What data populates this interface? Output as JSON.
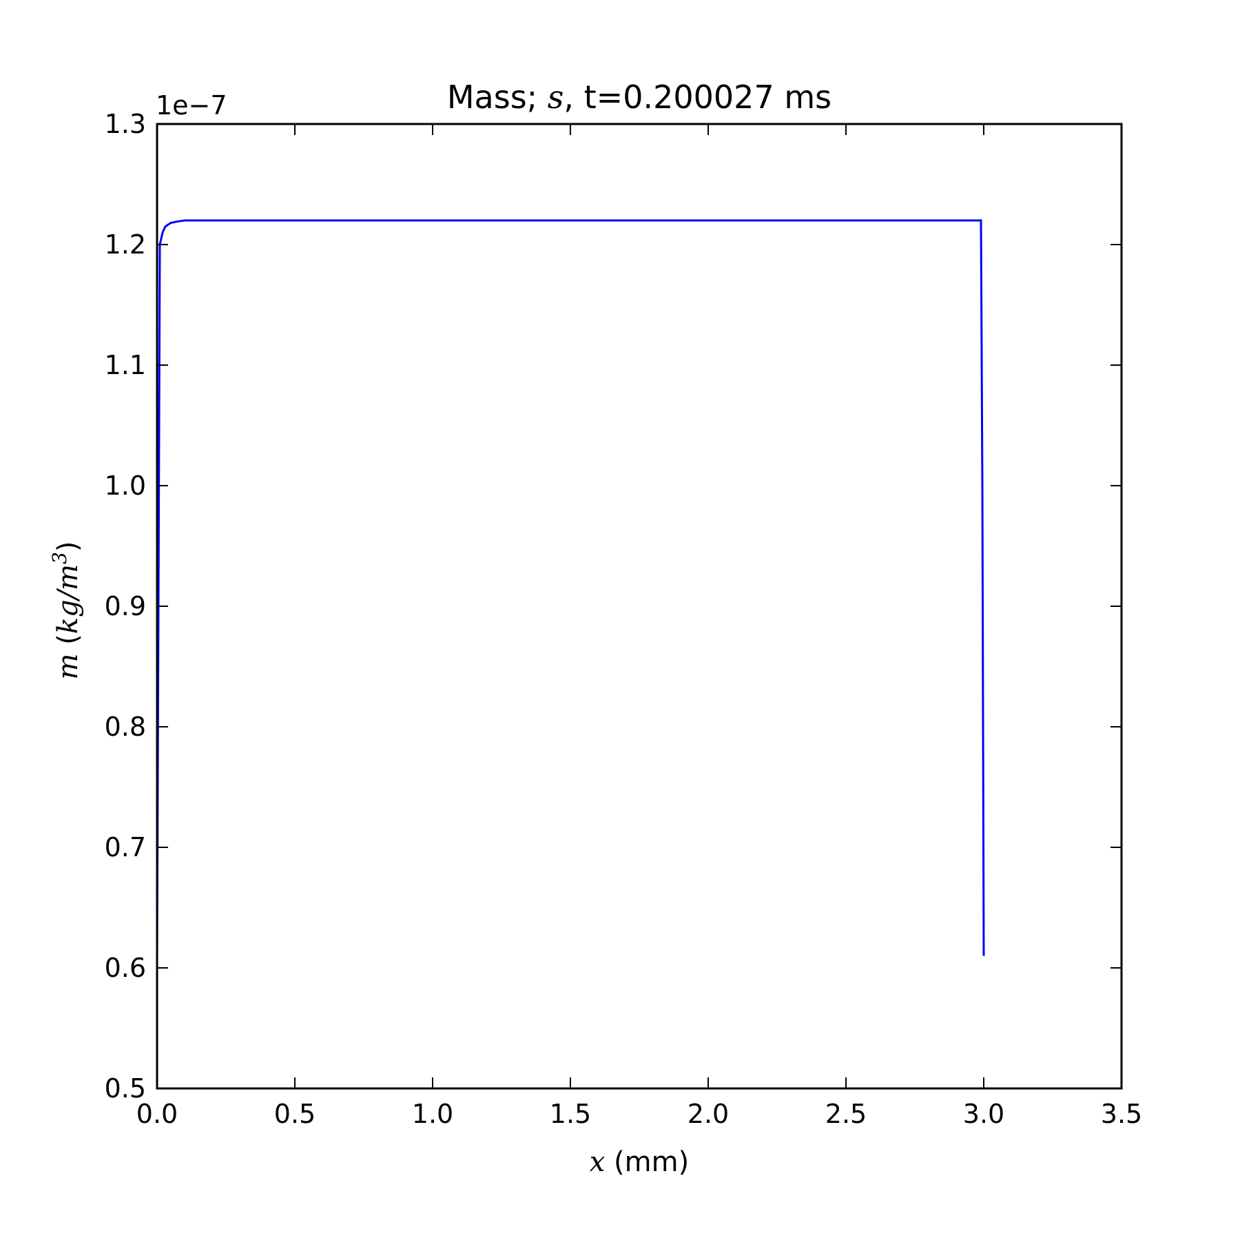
{
  "chart_data": {
    "type": "line",
    "title_parts": [
      "Mass; ",
      "s",
      ", t=0.200027 ms"
    ],
    "xlabel_parts": [
      "x",
      " (mm)"
    ],
    "ylabel_parts": [
      "m",
      " (",
      "kg/m",
      "3",
      ")"
    ],
    "y_offset_text": "1e−7",
    "xlim": [
      0.0,
      3.5
    ],
    "ylim": [
      0.5,
      1.3
    ],
    "x_ticks": [
      0.0,
      0.5,
      1.0,
      1.5,
      2.0,
      2.5,
      3.0,
      3.5
    ],
    "x_tick_labels": [
      "0.0",
      "0.5",
      "1.0",
      "1.5",
      "2.0",
      "2.5",
      "3.0",
      "3.5"
    ],
    "y_ticks": [
      0.5,
      0.6,
      0.7,
      0.8,
      0.9,
      1.0,
      1.1,
      1.2,
      1.3
    ],
    "y_tick_labels": [
      "0.5",
      "0.6",
      "0.7",
      "0.8",
      "0.9",
      "1.0",
      "1.1",
      "1.2",
      "1.3"
    ],
    "grid": false,
    "series": [
      {
        "color": "#0000ff",
        "x": [
          0.0,
          0.005,
          0.01,
          0.02,
          0.03,
          0.05,
          0.07,
          0.1,
          0.5,
          1.0,
          1.5,
          2.0,
          2.5,
          2.99,
          2.995,
          3.0
        ],
        "y": [
          0.61,
          0.9,
          1.2,
          1.21,
          1.215,
          1.218,
          1.219,
          1.22,
          1.22,
          1.22,
          1.22,
          1.22,
          1.22,
          1.22,
          1.0,
          0.61
        ]
      }
    ]
  }
}
